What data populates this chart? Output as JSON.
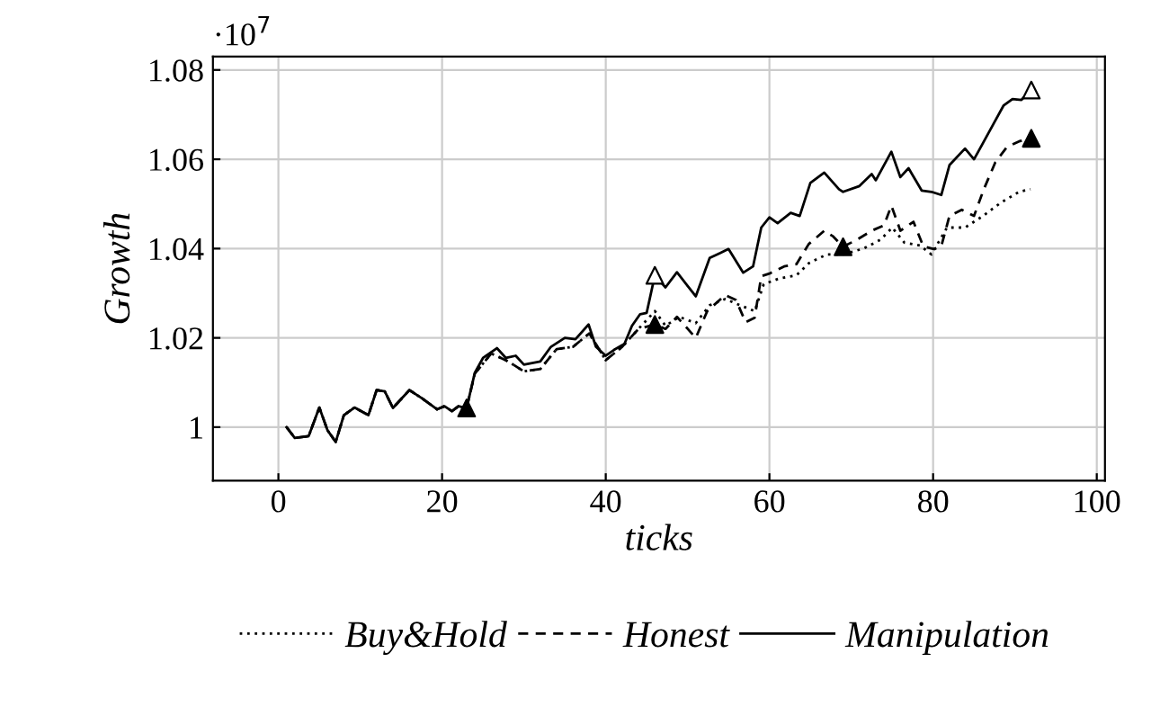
{
  "chart_data": {
    "type": "line",
    "xlabel": "ticks",
    "ylabel": "Growth",
    "xlim": [
      -8,
      101
    ],
    "ylim": [
      0.988,
      1.083
    ],
    "xticks": [
      0,
      20,
      40,
      60,
      80,
      100
    ],
    "yticks": [
      {
        "value": 1,
        "label": "1"
      },
      1.02,
      1.04,
      1.06,
      1.08
    ],
    "grid": true,
    "legend": "bottom",
    "annotations": [
      "·10$^{7}$"
    ],
    "series": [
      {
        "name": "Buy&Hold",
        "color": "#000000",
        "line_style": "dotted",
        "x": [
          1,
          2,
          3.7,
          5,
          6,
          7,
          8,
          9.3,
          11,
          12,
          13,
          14,
          16,
          17.6,
          19.4,
          20.3,
          21.2,
          22,
          23,
          24,
          26,
          28,
          30,
          32,
          34,
          36,
          38,
          40,
          42,
          44,
          46,
          47.3,
          49,
          51,
          52.7,
          54.6,
          56.4,
          58.2,
          59.3,
          61.2,
          63.3,
          64.8,
          67,
          69,
          71.5,
          73.6,
          75,
          76.5,
          78.4,
          79.8,
          81.7,
          83.9,
          86.1,
          88.3,
          90.5,
          91.9
        ],
        "values": [
          1.0,
          0.9976,
          0.998,
          1.0044,
          0.9993,
          0.9967,
          1.0027,
          1.0044,
          1.0027,
          1.0083,
          1.008,
          1.0043,
          1.0083,
          1.0064,
          1.004,
          1.0047,
          1.0036,
          1.0047,
          1.0043,
          1.012,
          1.0165,
          1.0148,
          1.0125,
          1.013,
          1.0175,
          1.018,
          1.021,
          1.015,
          1.018,
          1.022,
          1.026,
          1.0227,
          1.0247,
          1.0233,
          1.0273,
          1.0287,
          1.0273,
          1.026,
          1.032,
          1.0333,
          1.034,
          1.0367,
          1.0387,
          1.0387,
          1.04,
          1.042,
          1.0447,
          1.0413,
          1.0407,
          1.0387,
          1.0447,
          1.0447,
          1.0473,
          1.0503,
          1.0527,
          1.0533
        ]
      },
      {
        "name": "Honest",
        "color": "#000000",
        "line_style": "dashed",
        "x": [
          1,
          2,
          3.7,
          5,
          6,
          7,
          8,
          9.3,
          11,
          12,
          13,
          14,
          16,
          17.6,
          19.4,
          20.3,
          21.2,
          22,
          23,
          24,
          26,
          28,
          30,
          32,
          34,
          36,
          38,
          40,
          42,
          44,
          46,
          47.3,
          48.7,
          51,
          52.4,
          54.6,
          55.9,
          57.1,
          58.2,
          59,
          60,
          61.8,
          63.3,
          64.8,
          66.7,
          67.8,
          69,
          70.7,
          72.5,
          74,
          74.9,
          76,
          77.6,
          78.8,
          80.1,
          81,
          82,
          83.5,
          85,
          86.2,
          87.6,
          89,
          90.5,
          91.9
        ],
        "values": [
          1.0,
          0.9976,
          0.998,
          1.0044,
          0.9993,
          0.9967,
          1.0027,
          1.0044,
          1.0027,
          1.0083,
          1.008,
          1.0043,
          1.0083,
          1.0064,
          1.004,
          1.0047,
          1.0036,
          1.0047,
          1.0043,
          1.012,
          1.0165,
          1.0148,
          1.0125,
          1.013,
          1.0175,
          1.018,
          1.021,
          1.015,
          1.018,
          1.022,
          1.023,
          1.022,
          1.0247,
          1.02,
          1.026,
          1.0296,
          1.0285,
          1.0235,
          1.0245,
          1.0338,
          1.0344,
          1.036,
          1.0365,
          1.041,
          1.044,
          1.0427,
          1.0404,
          1.042,
          1.044,
          1.0452,
          1.0496,
          1.044,
          1.046,
          1.0405,
          1.0399,
          1.0405,
          1.0473,
          1.0487,
          1.0473,
          1.0533,
          1.0593,
          1.0627,
          1.064,
          1.0647
        ]
      },
      {
        "name": "Manipulation",
        "color": "#000000",
        "line_style": "solid",
        "x": [
          1,
          2,
          3.7,
          5,
          6,
          7,
          8,
          9.3,
          11,
          12,
          13,
          14,
          16,
          17.6,
          19.4,
          20.3,
          21.2,
          22,
          23,
          24,
          25,
          26.7,
          27.8,
          29,
          30,
          32,
          33.3,
          35,
          36.3,
          37.9,
          38.8,
          40,
          41,
          42.3,
          43.2,
          44.2,
          45,
          46,
          47.3,
          48.7,
          51,
          52.7,
          54,
          55,
          56.8,
          58,
          59,
          60,
          61,
          62.6,
          63.7,
          65,
          66.7,
          68.5,
          69,
          71,
          72.5,
          73,
          74.9,
          76,
          77,
          78.6,
          79.8,
          81,
          82,
          83.9,
          85,
          86,
          87.4,
          88.6,
          89.7,
          90.8,
          91.9
        ],
        "values": [
          1.0,
          0.9976,
          0.998,
          1.0044,
          0.9993,
          0.9967,
          1.0027,
          1.0044,
          1.0027,
          1.0083,
          1.008,
          1.0043,
          1.0083,
          1.0064,
          1.004,
          1.0047,
          1.0036,
          1.0047,
          1.0043,
          1.0122,
          1.0155,
          1.0177,
          1.0155,
          1.016,
          1.014,
          1.0147,
          1.018,
          1.02,
          1.0197,
          1.023,
          1.018,
          1.016,
          1.0173,
          1.0187,
          1.0227,
          1.0253,
          1.0256,
          1.034,
          1.0313,
          1.0347,
          1.0293,
          1.0379,
          1.039,
          1.0399,
          1.0346,
          1.036,
          1.0447,
          1.047,
          1.0457,
          1.048,
          1.0473,
          1.0547,
          1.057,
          1.0533,
          1.0527,
          1.054,
          1.0567,
          1.0553,
          1.0617,
          1.056,
          1.058,
          1.053,
          1.0527,
          1.052,
          1.0587,
          1.0624,
          1.06,
          1.0633,
          1.068,
          1.072,
          1.0735,
          1.0733,
          1.0755
        ]
      },
      {
        "type": "scatter",
        "marker": "triangle",
        "color": "#000000",
        "x": [
          23,
          46,
          69,
          92
        ],
        "values": [
          1.0043,
          1.023,
          1.0404,
          1.0647
        ]
      },
      {
        "type": "scatter",
        "marker": "triangle",
        "color": "#ffffff",
        "x": [
          46,
          92
        ],
        "values": [
          1.034,
          1.0755
        ]
      }
    ]
  }
}
